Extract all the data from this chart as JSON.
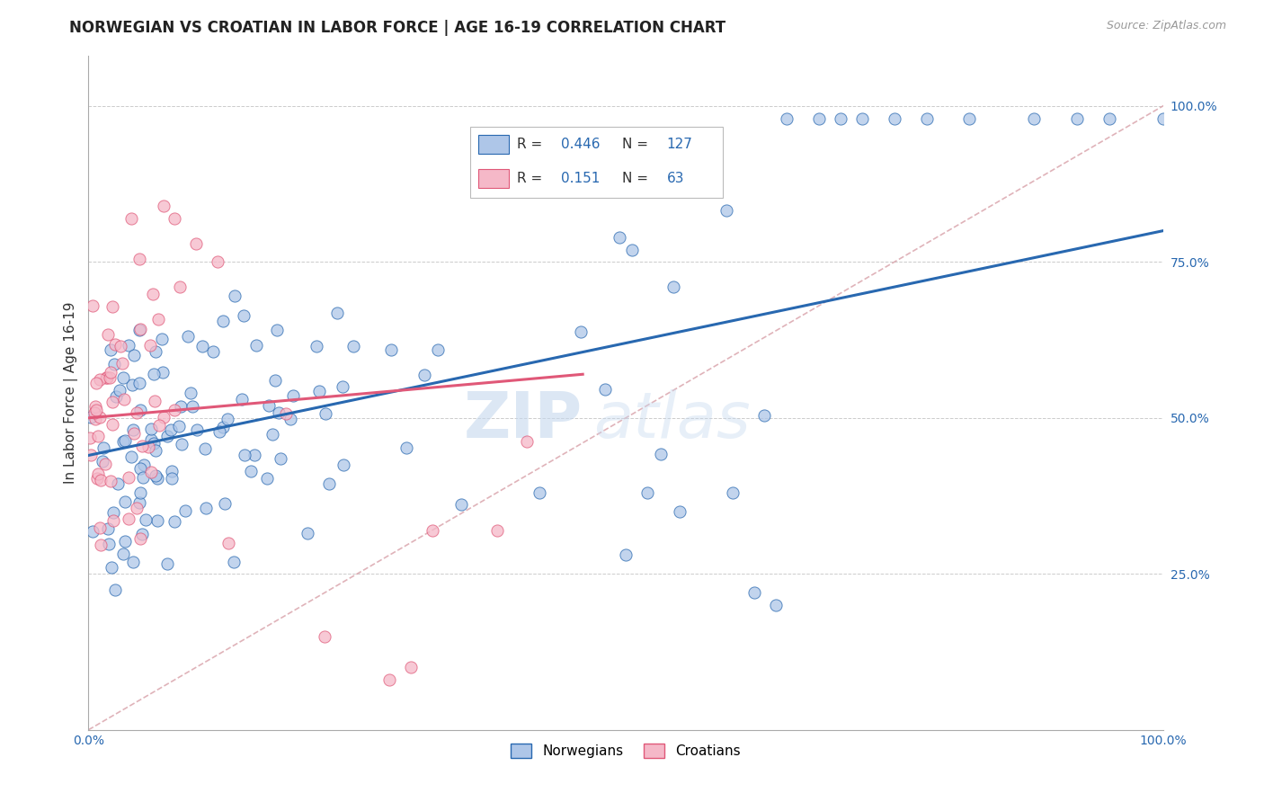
{
  "title": "NORWEGIAN VS CROATIAN IN LABOR FORCE | AGE 16-19 CORRELATION CHART",
  "source": "Source: ZipAtlas.com",
  "ylabel": "In Labor Force | Age 16-19",
  "xlim": [
    0.0,
    1.0
  ],
  "ylim": [
    0.0,
    1.08
  ],
  "norwegian_color": "#aec6e8",
  "croatian_color": "#f5b8c8",
  "norwegian_line_color": "#2868b0",
  "croatian_line_color": "#e05878",
  "diagonal_color": "#d8a0a8",
  "grid_color": "#cccccc",
  "R_norwegian": 0.446,
  "N_norwegian": 127,
  "R_croatian": 0.151,
  "N_croatian": 63,
  "nor_line_x0": 0.0,
  "nor_line_y0": 0.44,
  "nor_line_x1": 1.0,
  "nor_line_y1": 0.8,
  "cro_line_x0": 0.0,
  "cro_line_y0": 0.5,
  "cro_line_x1": 0.46,
  "cro_line_y1": 0.57,
  "watermark_top": "ZIP",
  "watermark_bot": "atlas",
  "background_color": "#ffffff"
}
